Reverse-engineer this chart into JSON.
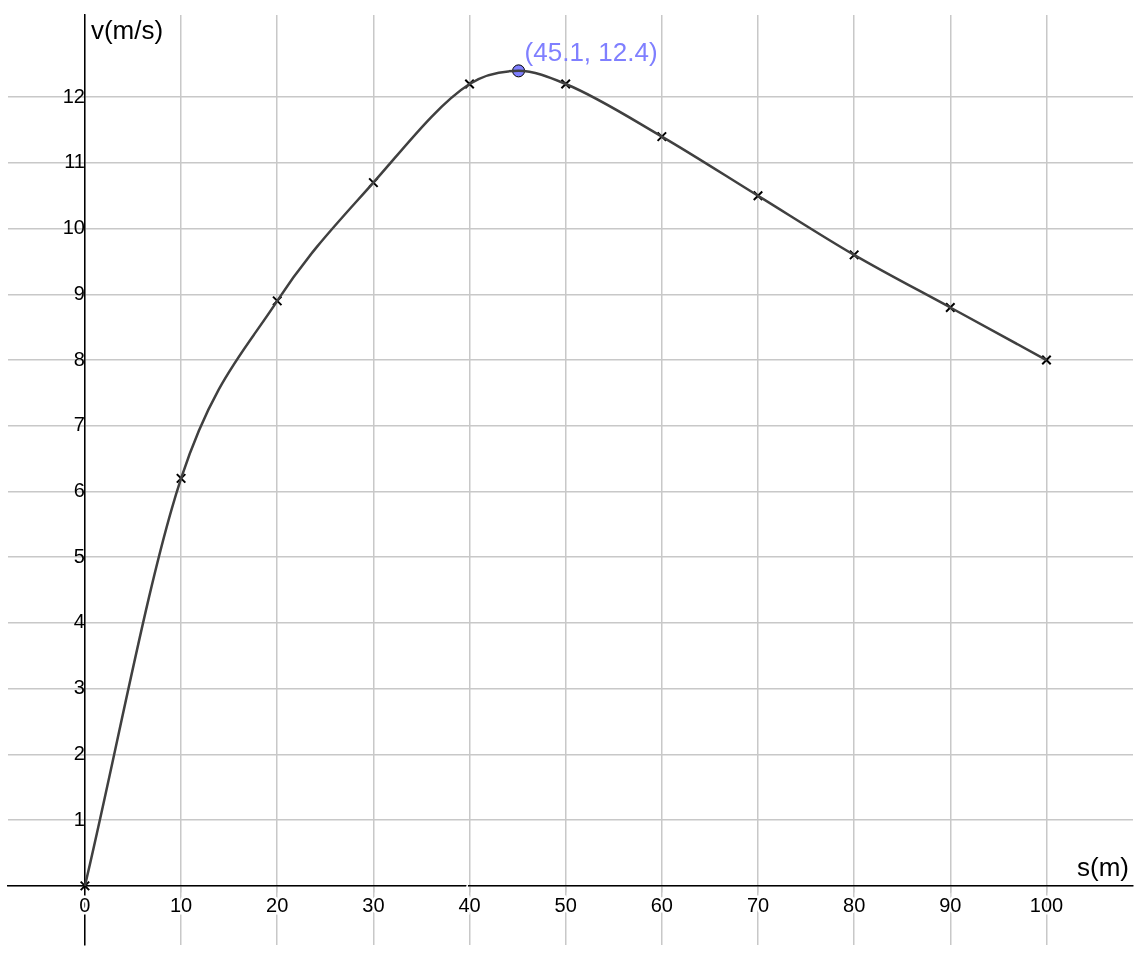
{
  "chart_data": {
    "type": "line",
    "xlabel": "s(m)",
    "ylabel": "v(m/s)",
    "xlim": [
      -8,
      109
    ],
    "ylim": [
      -0.9,
      13.25
    ],
    "xticks": [
      0,
      10,
      20,
      30,
      40,
      50,
      60,
      70,
      80,
      90,
      100
    ],
    "yticks": [
      {
        "value": 0,
        "label": null
      },
      1,
      2,
      3,
      4,
      5,
      6,
      7,
      8,
      9,
      10,
      11,
      12
    ],
    "grid": true,
    "legend": false,
    "series": [
      {
        "type": "line",
        "color": "#404040",
        "marker": "none",
        "x": [
          0,
          10,
          20,
          30,
          40,
          45.1,
          50,
          60,
          70,
          80,
          90,
          100
        ],
        "values": [
          0,
          6.2,
          8.9,
          10.7,
          12.2,
          12.4,
          12.2,
          11.4,
          10.5,
          9.6,
          8.8,
          8
        ]
      },
      {
        "type": "scatter",
        "color": "#000000",
        "marker": "cross",
        "x": [
          0,
          10,
          20,
          30,
          40,
          50,
          60,
          70,
          80,
          90,
          100
        ],
        "values": [
          0,
          6.2,
          8.9,
          10.7,
          12.2,
          12.2,
          11.4,
          10.5,
          9.6,
          8.8,
          8
        ]
      },
      {
        "type": "scatter",
        "color": "#7f7fff",
        "marker": "circle",
        "x": [
          45.1
        ],
        "values": [
          12.4
        ]
      }
    ],
    "annotations": [
      {
        "text": "(45.1, 12.4)",
        "x": 45.1,
        "y": 12.4
      }
    ]
  }
}
